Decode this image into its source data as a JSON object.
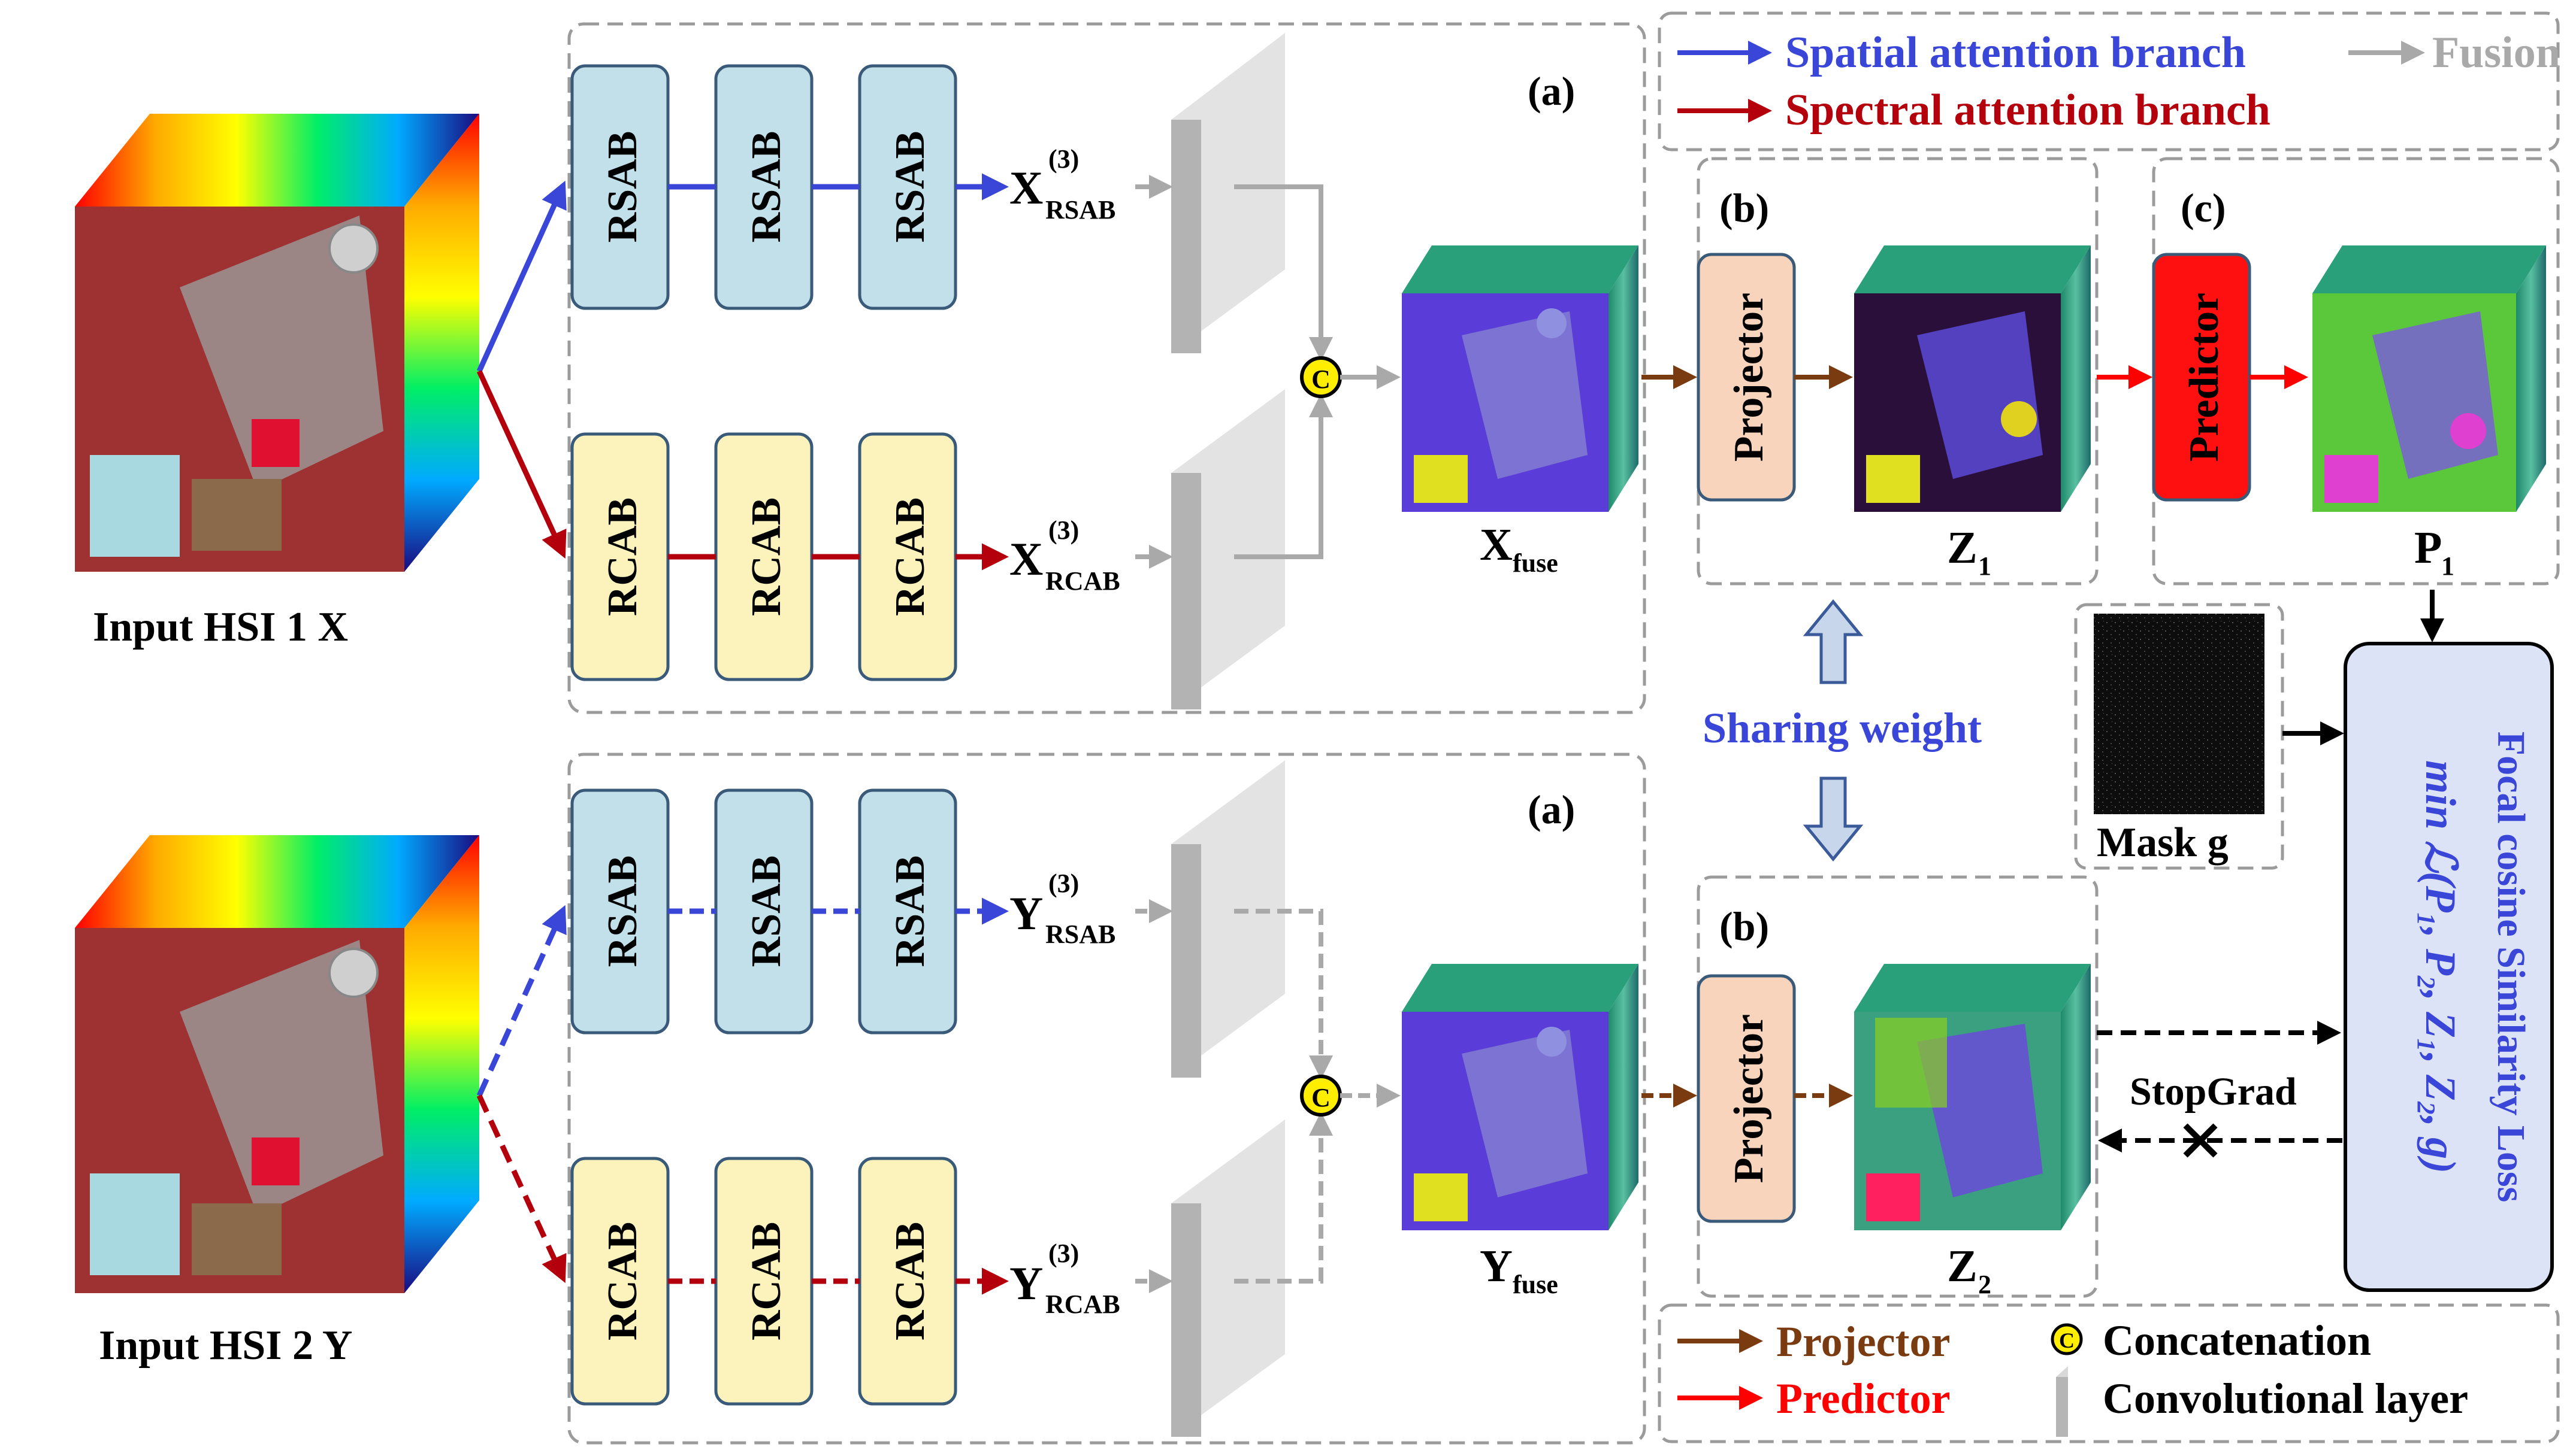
{
  "legend_top": {
    "spatial": "Spatial attention branch",
    "spectral": "Spectral attention branch",
    "fusion": "Fusion",
    "colors": {
      "spatial": "#3a46d8",
      "spectral": "#b3000c",
      "fusion": "#a9a9a9"
    }
  },
  "legend_bottom": {
    "projector": "Projector",
    "predictor": "Predictor",
    "concat_symbol": "C",
    "concatenation": "Concatenation",
    "conv_layer": "Convolutional layer",
    "colors": {
      "projector": "#7a3b10",
      "predictor": "#ff0000"
    }
  },
  "inputs": {
    "x_label": "Input HSI 1  X",
    "y_label": "Input HSI 2  Y"
  },
  "blocks": {
    "rsab": "RSAB",
    "rcab": "RCAB",
    "projector": "Projector",
    "predictor": "Predictor",
    "concat": "C"
  },
  "outputs": {
    "x_rsab_base": "X",
    "x_rsab_sup": "(3)",
    "x_rsab_sub": "RSAB",
    "x_rcab_base": "X",
    "x_rcab_sup": "(3)",
    "x_rcab_sub": "RCAB",
    "y_rsab_base": "Y",
    "y_rsab_sup": "(3)",
    "y_rsab_sub": "RSAB",
    "y_rcab_base": "Y",
    "y_rcab_sup": "(3)",
    "y_rcab_sub": "RCAB",
    "x_fuse_base": "X",
    "x_fuse_sub": "fuse",
    "y_fuse_base": "Y",
    "y_fuse_sub": "fuse",
    "z1_base": "Z",
    "z1_sub": "1",
    "z2_base": "Z",
    "z2_sub": "2",
    "p1_base": "P",
    "p1_sub": "1"
  },
  "panels": {
    "a_top": "(a)",
    "a_bottom": "(a)",
    "b_top": "(b)",
    "b_bottom": "(b)",
    "c": "(c)"
  },
  "sharing_weight": "Sharing weight",
  "mask_label": "Mask g",
  "stopgrad": "StopGrad",
  "loss": {
    "line1": "Focal cosine Similarity Loss",
    "line2": "min ℒ(P₁, P₂, Z₁, Z₂, g)"
  }
}
